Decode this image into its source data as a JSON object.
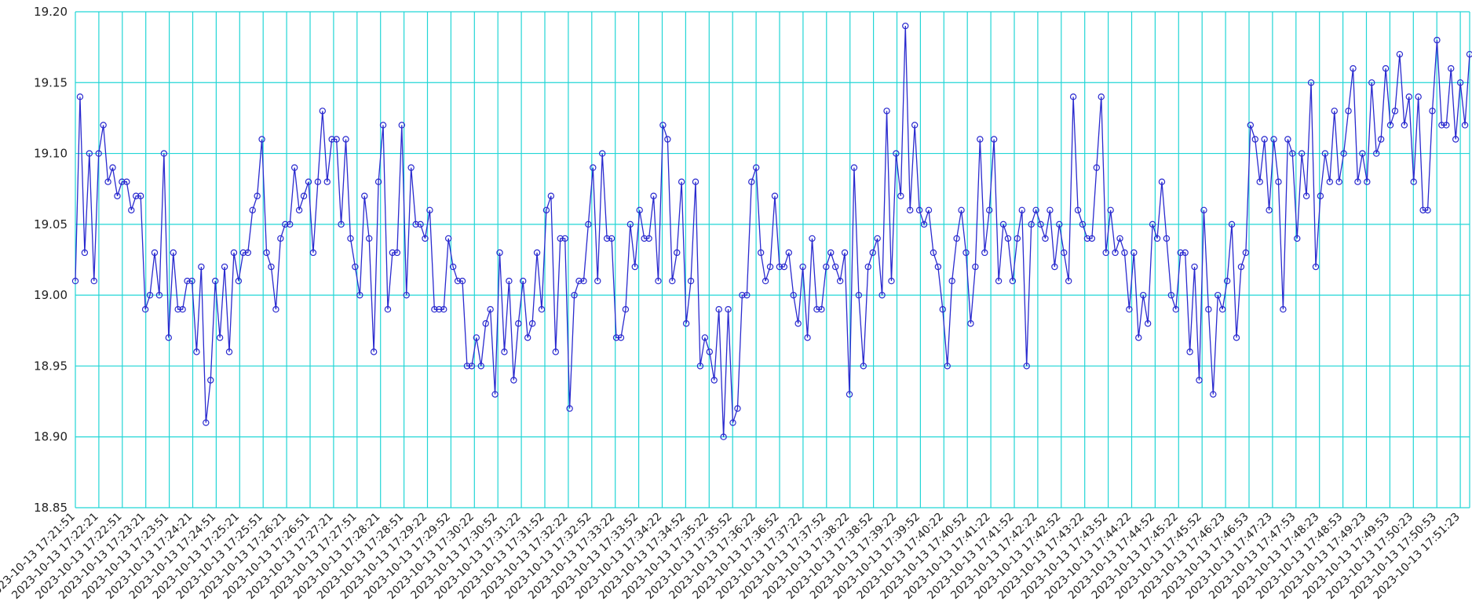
{
  "chart_data": {
    "type": "line",
    "title": "",
    "xlabel": "",
    "ylabel": "",
    "ylim": [
      18.85,
      19.2
    ],
    "y_ticks": [
      "18.85",
      "18.90",
      "18.95",
      "19.00",
      "19.05",
      "19.10",
      "19.15",
      "19.20"
    ],
    "x_ticks": [
      "2023-10-13 17:21:51",
      "2023-10-13 17:22:21",
      "2023-10-13 17:22:51",
      "2023-10-13 17:23:21",
      "2023-10-13 17:23:51",
      "2023-10-13 17:24:21",
      "2023-10-13 17:24:51",
      "2023-10-13 17:25:21",
      "2023-10-13 17:25:51",
      "2023-10-13 17:26:21",
      "2023-10-13 17:26:51",
      "2023-10-13 17:27:21",
      "2023-10-13 17:27:51",
      "2023-10-13 17:28:21",
      "2023-10-13 17:28:51",
      "2023-10-13 17:29:22",
      "2023-10-13 17:29:52",
      "2023-10-13 17:30:22",
      "2023-10-13 17:30:52",
      "2023-10-13 17:31:22",
      "2023-10-13 17:31:52",
      "2023-10-13 17:32:22",
      "2023-10-13 17:32:52",
      "2023-10-13 17:33:22",
      "2023-10-13 17:33:52",
      "2023-10-13 17:34:22",
      "2023-10-13 17:34:52",
      "2023-10-13 17:35:22",
      "2023-10-13 17:35:52",
      "2023-10-13 17:36:22",
      "2023-10-13 17:36:52",
      "2023-10-13 17:37:22",
      "2023-10-13 17:37:52",
      "2023-10-13 17:38:22",
      "2023-10-13 17:38:52",
      "2023-10-13 17:39:22",
      "2023-10-13 17:39:52",
      "2023-10-13 17:40:22",
      "2023-10-13 17:40:52",
      "2023-10-13 17:41:22",
      "2023-10-13 17:41:52",
      "2023-10-13 17:42:22",
      "2023-10-13 17:42:52",
      "2023-10-13 17:43:22",
      "2023-10-13 17:43:52",
      "2023-10-13 17:44:22",
      "2023-10-13 17:44:52",
      "2023-10-13 17:45:22",
      "2023-10-13 17:45:52",
      "2023-10-13 17:46:23",
      "2023-10-13 17:46:53",
      "2023-10-13 17:47:23",
      "2023-10-13 17:47:53",
      "2023-10-13 17:48:23",
      "2023-10-13 17:48:53",
      "2023-10-13 17:49:23",
      "2023-10-13 17:49:53",
      "2023-10-13 17:50:23",
      "2023-10-13 17:50:53",
      "2023-10-13 17:51:23"
    ],
    "grid": true,
    "colors": {
      "line": "#2a2acf",
      "grid": "#22d6d6"
    },
    "series": [
      {
        "values": [
          19.01,
          19.14,
          19.03,
          19.1,
          19.01,
          19.1,
          19.12,
          19.08,
          19.09,
          19.07,
          19.08,
          19.08,
          19.06,
          19.07,
          19.07,
          18.99,
          19.0,
          19.03,
          19.0,
          19.1,
          18.97,
          19.03,
          18.99,
          18.99,
          19.01,
          19.01,
          18.96,
          19.02,
          18.91,
          18.94,
          19.01,
          18.97,
          19.02,
          18.96,
          19.03,
          19.01,
          19.03,
          19.03,
          19.06,
          19.07,
          19.11,
          19.03,
          19.02,
          18.99,
          19.04,
          19.05,
          19.05,
          19.09,
          19.06,
          19.07,
          19.08,
          19.03,
          19.08,
          19.13,
          19.08,
          19.11,
          19.11,
          19.05,
          19.11,
          19.04,
          19.02,
          19.0,
          19.07,
          19.04,
          18.96,
          19.08,
          19.12,
          18.99,
          19.03,
          19.03,
          19.12,
          19.0,
          19.09,
          19.05,
          19.05,
          19.04,
          19.06,
          18.99,
          18.99,
          18.99,
          19.04,
          19.02,
          19.01,
          19.01,
          18.95,
          18.95,
          18.97,
          18.95,
          18.98,
          18.99,
          18.93,
          19.03,
          18.96,
          19.01,
          18.94,
          18.98,
          19.01,
          18.97,
          18.98,
          19.03,
          18.99,
          19.06,
          19.07,
          18.96,
          19.04,
          19.04,
          18.92,
          19.0,
          19.01,
          19.01,
          19.05,
          19.09,
          19.01,
          19.1,
          19.04,
          19.04,
          18.97,
          18.97,
          18.99,
          19.05,
          19.02,
          19.06,
          19.04,
          19.04,
          19.07,
          19.01,
          19.12,
          19.11,
          19.01,
          19.03,
          19.08,
          18.98,
          19.01,
          19.08,
          18.95,
          18.97,
          18.96,
          18.94,
          18.99,
          18.9,
          18.99,
          18.91,
          18.92,
          19.0,
          19.0,
          19.08,
          19.09,
          19.03,
          19.01,
          19.02,
          19.07,
          19.02,
          19.02,
          19.03,
          19.0,
          18.98,
          19.02,
          18.97,
          19.04,
          18.99,
          18.99,
          19.02,
          19.03,
          19.02,
          19.01,
          19.03,
          18.93,
          19.09,
          19.0,
          18.95,
          19.02,
          19.03,
          19.04,
          19.0,
          19.13,
          19.01,
          19.1,
          19.07,
          19.19,
          19.06,
          19.12,
          19.06,
          19.05,
          19.06,
          19.03,
          19.02,
          18.99,
          18.95,
          19.01,
          19.04,
          19.06,
          19.03,
          18.98,
          19.02,
          19.11,
          19.03,
          19.06,
          19.11,
          19.01,
          19.05,
          19.04,
          19.01,
          19.04,
          19.06,
          18.95,
          19.05,
          19.06,
          19.05,
          19.04,
          19.06,
          19.02,
          19.05,
          19.03,
          19.01,
          19.14,
          19.06,
          19.05,
          19.04,
          19.04,
          19.09,
          19.14,
          19.03,
          19.06,
          19.03,
          19.04,
          19.03,
          18.99,
          19.03,
          18.97,
          19.0,
          18.98,
          19.05,
          19.04,
          19.08,
          19.04,
          19.0,
          18.99,
          19.03,
          19.03,
          18.96,
          19.02,
          18.94,
          19.06,
          18.99,
          18.93,
          19.0,
          18.99,
          19.01,
          19.05,
          18.97,
          19.02,
          19.03,
          19.12,
          19.11,
          19.08,
          19.11,
          19.06,
          19.11,
          19.08,
          18.99,
          19.11,
          19.1,
          19.04,
          19.1,
          19.07,
          19.15,
          19.02,
          19.07,
          19.1,
          19.08,
          19.13,
          19.08,
          19.1,
          19.13,
          19.16,
          19.08,
          19.1,
          19.08,
          19.15,
          19.1,
          19.11,
          19.16,
          19.12,
          19.13,
          19.17,
          19.12,
          19.14,
          19.08,
          19.14,
          19.06,
          19.06,
          19.13,
          19.18,
          19.12,
          19.12,
          19.16,
          19.11,
          19.15,
          19.12,
          19.17
        ]
      }
    ]
  }
}
